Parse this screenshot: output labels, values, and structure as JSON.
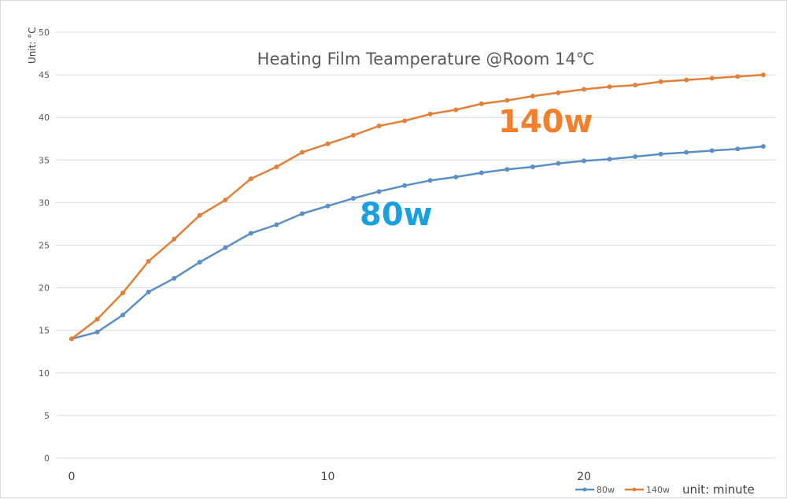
{
  "chart_data": {
    "type": "line",
    "title": "Heating Film Teamperature @Room 14℃",
    "ylabel": "Unit: °C",
    "xlabel": "unit: minute",
    "ylim": [
      0,
      50
    ],
    "y_ticks": [
      0,
      5,
      10,
      15,
      20,
      25,
      30,
      35,
      40,
      45,
      50
    ],
    "x_ticks": [
      0,
      10,
      20
    ],
    "grid": true,
    "legend_position": "bottom-right",
    "x": [
      0,
      1,
      2,
      3,
      4,
      5,
      6,
      7,
      8,
      9,
      10,
      11,
      12,
      13,
      14,
      15,
      16,
      17,
      18,
      19,
      20,
      21,
      22,
      23,
      24,
      25,
      26,
      27
    ],
    "series": [
      {
        "name": "80w",
        "color": "#5b8fc4",
        "values": [
          14.0,
          14.8,
          16.8,
          19.5,
          21.1,
          23.0,
          24.7,
          26.4,
          27.4,
          28.7,
          29.6,
          30.5,
          31.3,
          32.0,
          32.6,
          33.0,
          33.5,
          33.9,
          34.2,
          34.6,
          34.9,
          35.1,
          35.4,
          35.7,
          35.9,
          36.1,
          36.3,
          36.6
        ]
      },
      {
        "name": "140w",
        "color": "#e0803a",
        "values": [
          14.0,
          16.3,
          19.4,
          23.1,
          25.7,
          28.5,
          30.3,
          32.8,
          34.2,
          35.9,
          36.9,
          37.9,
          39.0,
          39.6,
          40.4,
          40.9,
          41.6,
          42.0,
          42.5,
          42.9,
          43.3,
          43.6,
          43.8,
          44.2,
          44.4,
          44.6,
          44.8,
          45.0
        ]
      }
    ],
    "annotations": [
      {
        "text": "140w",
        "color": "#f47e2a"
      },
      {
        "text": "80w",
        "color": "#1aa0e0"
      }
    ]
  }
}
